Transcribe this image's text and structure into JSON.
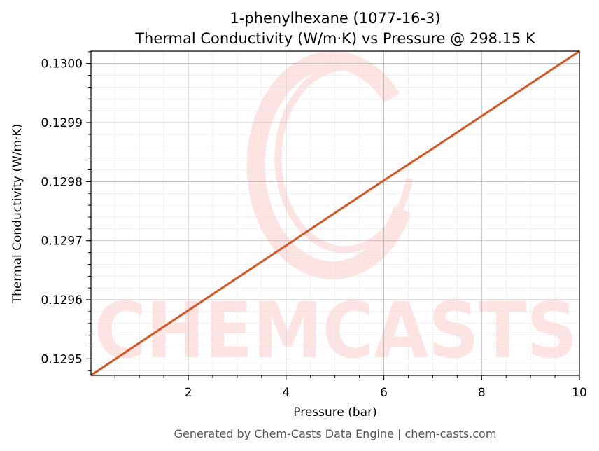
{
  "chart_data": {
    "type": "line",
    "title_line1": "1-phenylhexane (1077-16-3)",
    "title_line2": "Thermal Conductivity (W/m·K) vs Pressure @ 298.15 K",
    "xlabel": "Pressure (bar)",
    "ylabel": "Thermal Conductivity (W/m·K)",
    "xlim": [
      0.01,
      10
    ],
    "ylim": [
      0.129472,
      0.130021
    ],
    "xticks": [
      2,
      4,
      6,
      8,
      10
    ],
    "yticks": [
      0.1295,
      0.1296,
      0.1297,
      0.1298,
      0.1299,
      0.13
    ],
    "ytick_labels": [
      "0.1295",
      "0.1296",
      "0.1297",
      "0.1298",
      "0.1299",
      "0.1300"
    ],
    "grid": true,
    "series": [
      {
        "color": "#d9541e",
        "x": [
          0.01,
          1,
          2,
          3,
          4,
          5,
          6,
          7,
          8,
          9,
          10
        ],
        "y": [
          0.129472,
          0.129527,
          0.129582,
          0.129637,
          0.129692,
          0.129747,
          0.129802,
          0.129856,
          0.129911,
          0.129966,
          0.130021
        ]
      }
    ],
    "watermark": "CHEMCASTS",
    "footer": "Generated by Chem-Casts Data Engine | chem-casts.com"
  }
}
